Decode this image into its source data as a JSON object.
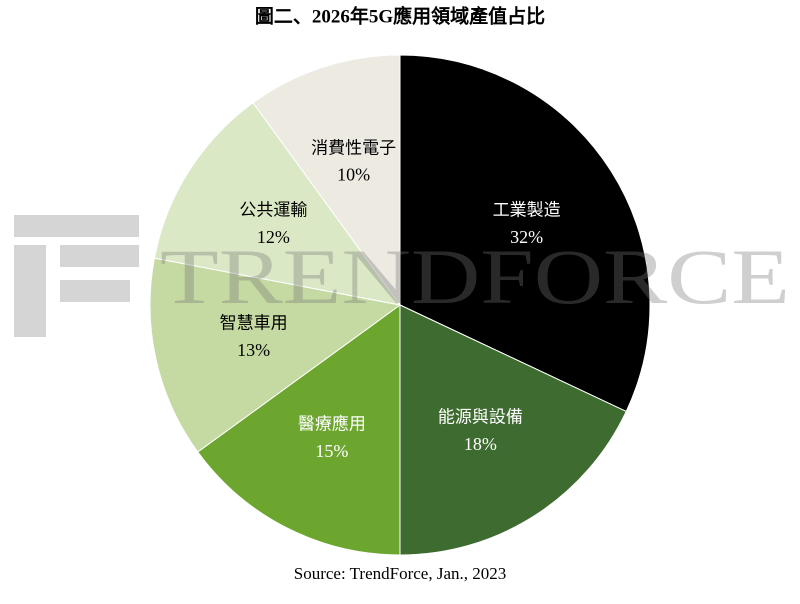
{
  "chart_data": {
    "type": "pie",
    "title": "圖二、2026年5G應用領域產值占比",
    "categories": [
      "工業製造",
      "能源與設備",
      "醫療應用",
      "智慧車用",
      "公共運輸",
      "消費性電子"
    ],
    "values": [
      32,
      18,
      15,
      13,
      12,
      10
    ],
    "value_labels": [
      "32%",
      "18%",
      "15%",
      "13%",
      "12%",
      "10%"
    ],
    "colors": [
      "#000000",
      "#3e6b2f",
      "#6da62f",
      "#c5d9a2",
      "#dbe8c5",
      "#edeae2"
    ],
    "source": "Source: TrendForce, Jan., 2023",
    "watermark": "TRENDFORCE"
  }
}
